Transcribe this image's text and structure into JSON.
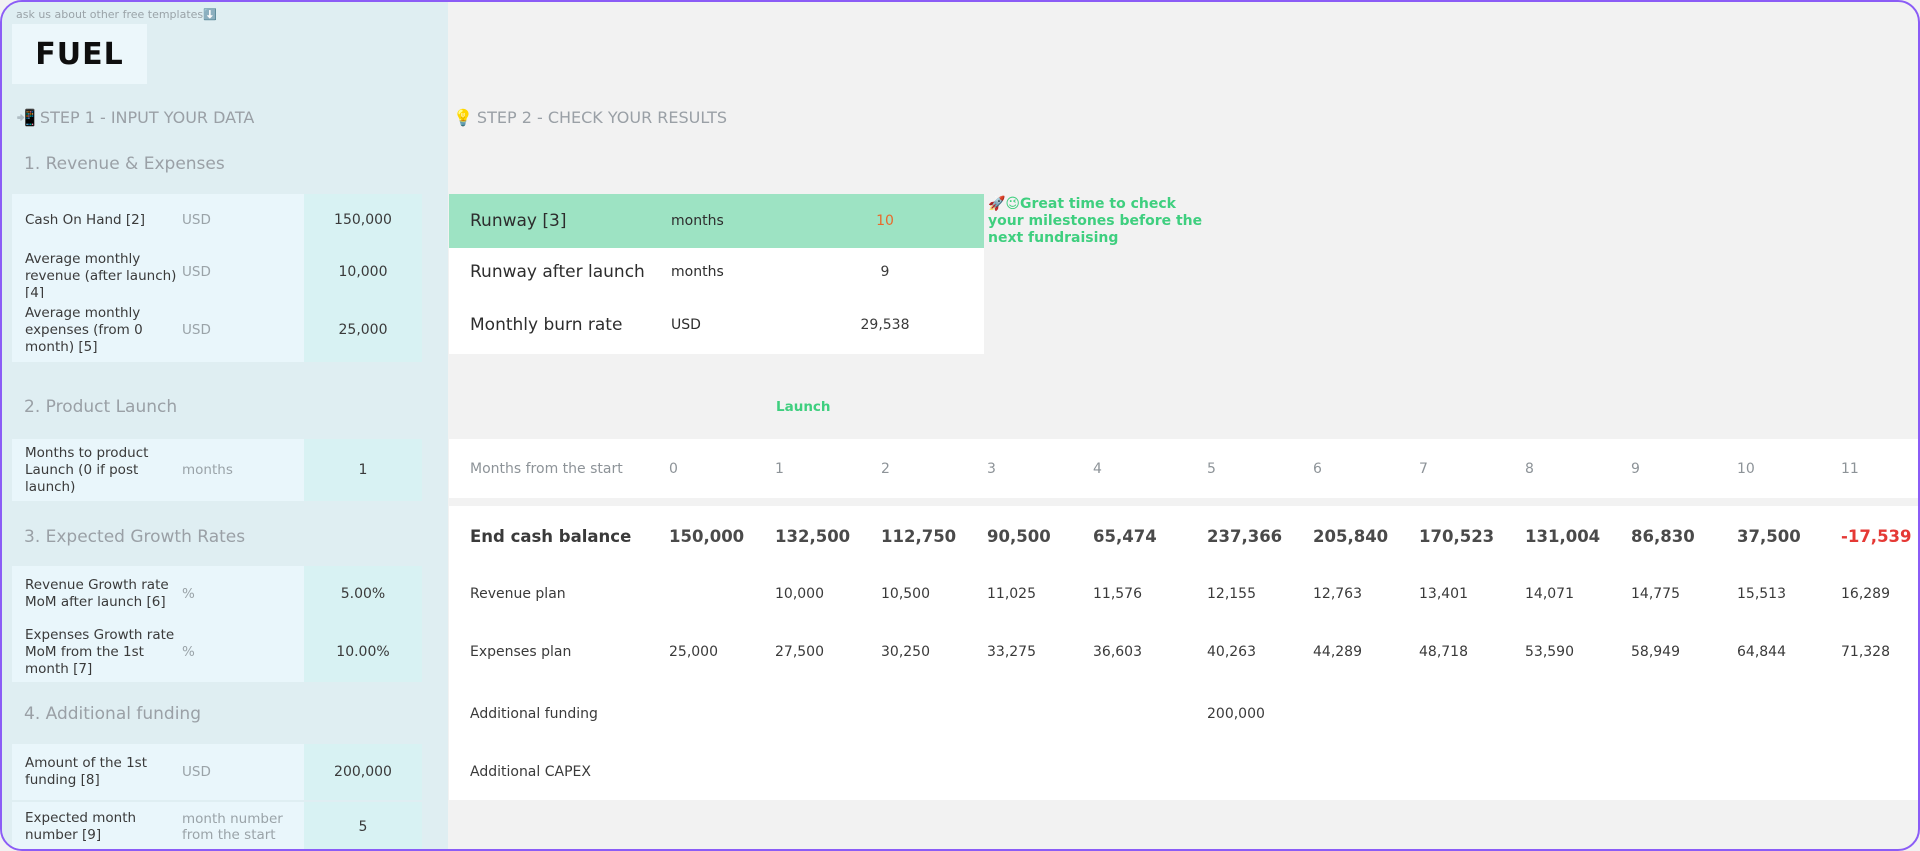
{
  "hint": "ask us about other free templates⬇️",
  "logo": "FUEL",
  "step1": {
    "icon": "📲",
    "label": "STEP 1 - INPUT YOUR DATA"
  },
  "step2": {
    "icon": "💡",
    "label": "STEP 2 - CHECK YOUR RESULTS"
  },
  "sections": {
    "revenue": "1. Revenue & Expenses",
    "launch": "2. Product Launch",
    "growth": "3. Expected Growth Rates",
    "funding": "4. Additional funding"
  },
  "inputs": {
    "cash": {
      "label": "Cash On Hand [2]",
      "unit": "USD",
      "value": "150,000"
    },
    "revenue": {
      "label": "Average monthly revenue (after launch) [4]",
      "unit": "USD",
      "value": "10,000"
    },
    "expenses": {
      "label": "Average monthly expenses (from 0 month) [5]",
      "unit": "USD",
      "value": "25,000"
    },
    "months_launch": {
      "label": "Months to product Launch (0 if post launch)",
      "unit": "months",
      "value": "1"
    },
    "rev_growth": {
      "label": "Revenue Growth rate MoM after launch [6]",
      "unit": "%",
      "value": "5.00%"
    },
    "exp_growth": {
      "label": "Expenses Growth rate MoM from the 1st month [7]",
      "unit": "%",
      "value": "10.00%"
    },
    "funding_amount": {
      "label": "Amount of the 1st funding [8]",
      "unit": "USD",
      "value": "200,000"
    },
    "funding_month": {
      "label": "Expected month number [9]",
      "unit": "month number from the start",
      "value": "5"
    }
  },
  "results": {
    "runway": {
      "label": "Runway [3]",
      "unit": "months",
      "value": "10"
    },
    "runway_after": {
      "label": "Runway after launch",
      "unit": "months",
      "value": "9"
    },
    "burn": {
      "label": "Monthly  burn rate",
      "unit": "USD",
      "value": "29,538"
    }
  },
  "note": "🚀😉Great time to check your milestones before the next fundraising",
  "launch_marker": "Launch",
  "colors": {
    "accent_green": "#3fcf7f",
    "runway_bg": "#9de3c3",
    "negative": "#e53935",
    "border": "#8b5cf6"
  },
  "table": {
    "months_label": "Months from the start",
    "months": [
      "0",
      "1",
      "2",
      "3",
      "4",
      "5",
      "6",
      "7",
      "8",
      "9",
      "10",
      "11"
    ],
    "rows": [
      {
        "label": "End cash balance",
        "values": [
          "150,000",
          "132,500",
          "112,750",
          "90,500",
          "65,474",
          "237,366",
          "205,840",
          "170,523",
          "131,004",
          "86,830",
          "37,500",
          "-17,539"
        ]
      },
      {
        "label": "Revenue plan",
        "values": [
          "",
          "10,000",
          "10,500",
          "11,025",
          "11,576",
          "12,155",
          "12,763",
          "13,401",
          "14,071",
          "14,775",
          "15,513",
          "16,289"
        ]
      },
      {
        "label": "Expenses plan",
        "values": [
          "25,000",
          "27,500",
          "30,250",
          "33,275",
          "36,603",
          "40,263",
          "44,289",
          "48,718",
          "53,590",
          "58,949",
          "64,844",
          "71,328"
        ]
      },
      {
        "label": "Additional funding",
        "values": [
          "",
          "",
          "",
          "",
          "",
          "200,000",
          "",
          "",
          "",
          "",
          "",
          ""
        ]
      },
      {
        "label": "Additional CAPEX",
        "values": [
          "",
          "",
          "",
          "",
          "",
          "",
          "",
          "",
          "",
          "",
          "",
          ""
        ]
      }
    ]
  }
}
